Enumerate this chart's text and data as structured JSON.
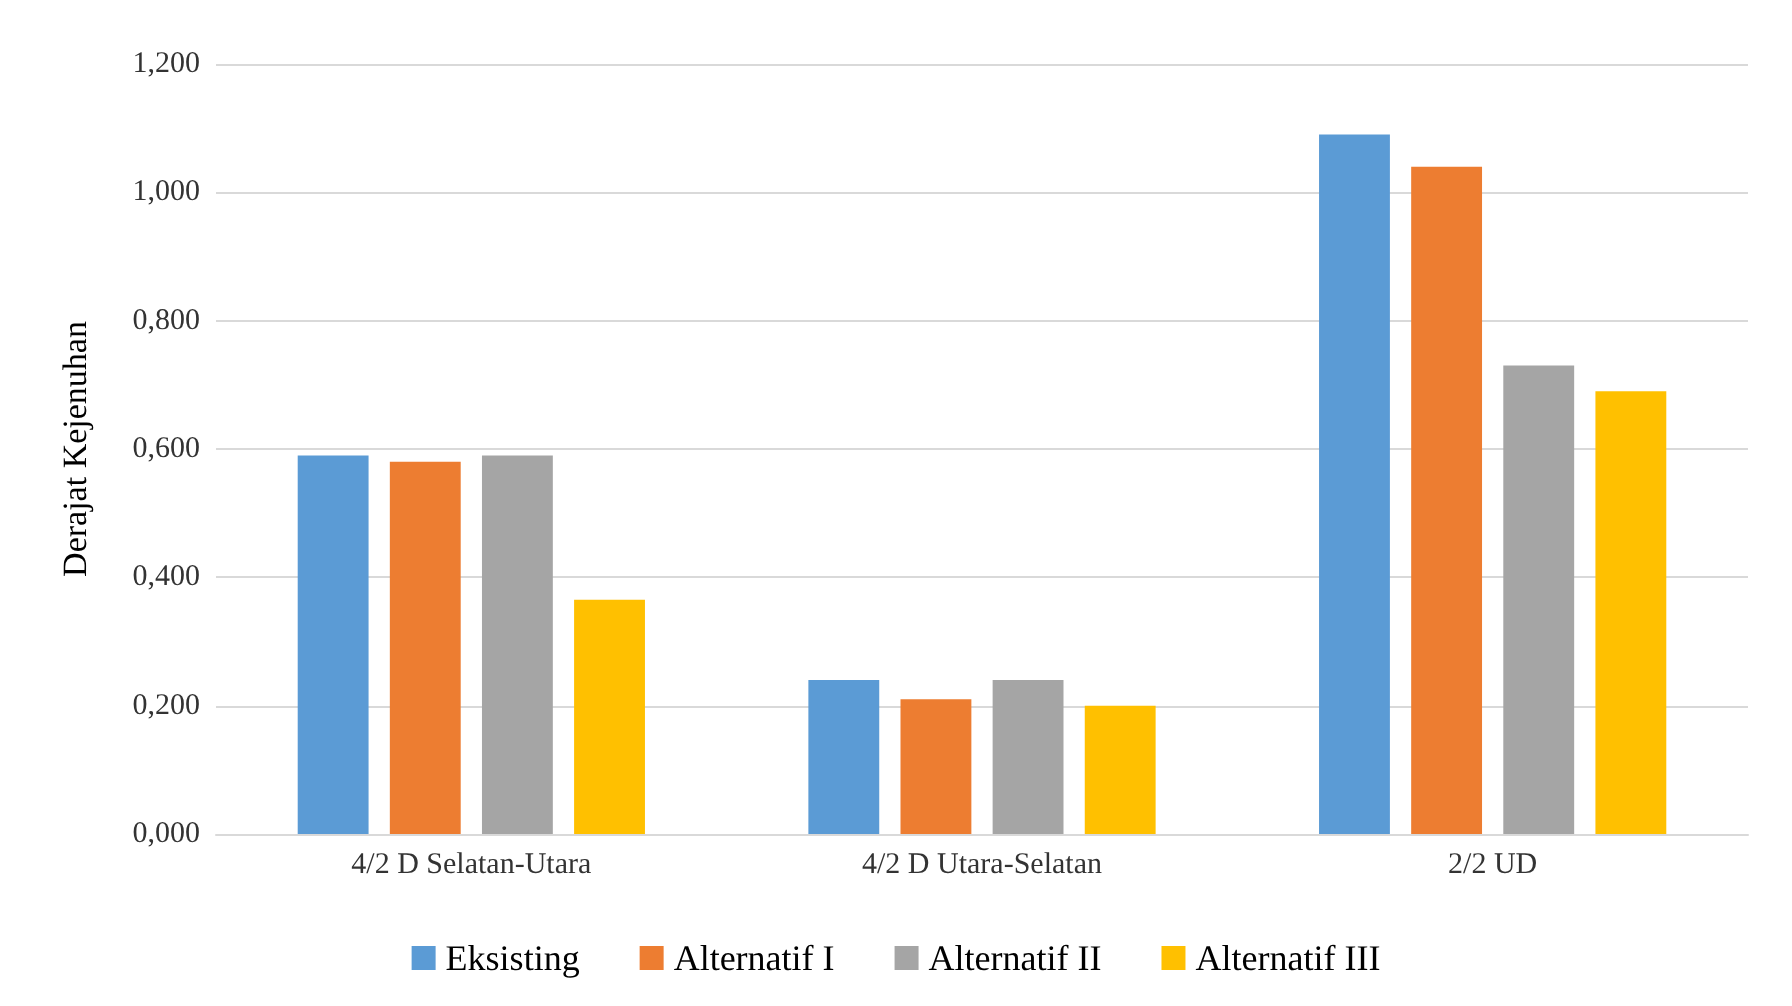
{
  "chart_data": {
    "type": "bar",
    "ylabel": "Derajat Kejenuhan",
    "categories": [
      "4/2 D Selatan-Utara",
      "4/2 D Utara-Selatan",
      "2/2 UD"
    ],
    "series": [
      {
        "name": "Eksisting",
        "color": "#5b9bd5",
        "values": [
          0.59,
          0.24,
          1.09
        ]
      },
      {
        "name": "Alternatif I",
        "color": "#ed7d31",
        "values": [
          0.58,
          0.21,
          1.04
        ]
      },
      {
        "name": "Alternatif II",
        "color": "#a5a5a5",
        "values": [
          0.59,
          0.24,
          0.73
        ]
      },
      {
        "name": "Alternatif III",
        "color": "#ffc000",
        "values": [
          0.365,
          0.2,
          0.69
        ]
      }
    ],
    "ylim": [
      0,
      1.2
    ],
    "yticks": [
      {
        "value": 0,
        "label": "0,000"
      },
      {
        "value": 0.2,
        "label": "0,200"
      },
      {
        "value": 0.4,
        "label": "0,400"
      },
      {
        "value": 0.6,
        "label": "0,600"
      },
      {
        "value": 0.8,
        "label": "0,800"
      },
      {
        "value": 1,
        "label": "1,000"
      },
      {
        "value": 1.2,
        "label": "1,200"
      }
    ],
    "grid": "y",
    "legend": "bottom"
  }
}
